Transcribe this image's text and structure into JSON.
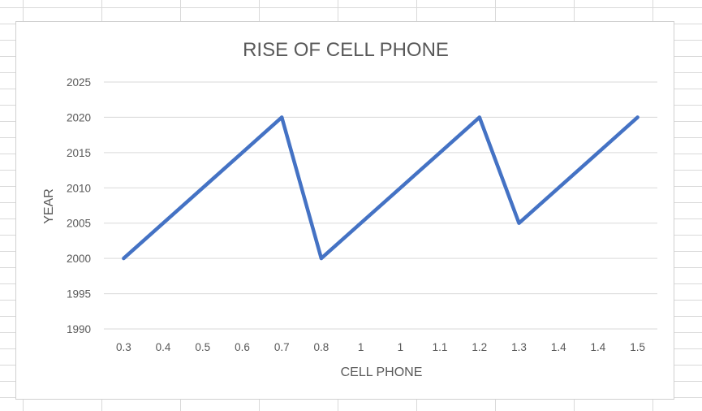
{
  "chart_data": {
    "type": "line",
    "title": "RISE OF CELL PHONE",
    "xlabel": "CELL PHONE",
    "ylabel": "YEAR",
    "categories": [
      "0.3",
      "0.4",
      "0.5",
      "0.6",
      "0.7",
      "0.8",
      "1",
      "1",
      "1.1",
      "1.2",
      "1.3",
      "1.4",
      "1.4",
      "1.5"
    ],
    "series": [
      {
        "values": [
          2000,
          2005,
          2010,
          2015,
          2020,
          2000,
          2005,
          2010,
          2015,
          2020,
          2005,
          2010,
          2015,
          2020
        ]
      }
    ],
    "ylim": [
      1990,
      2025
    ],
    "yticks": [
      1990,
      1995,
      2000,
      2005,
      2010,
      2015,
      2020,
      2025
    ],
    "grid": "horizontal",
    "legend": "none",
    "line_color": "#4472c4"
  }
}
